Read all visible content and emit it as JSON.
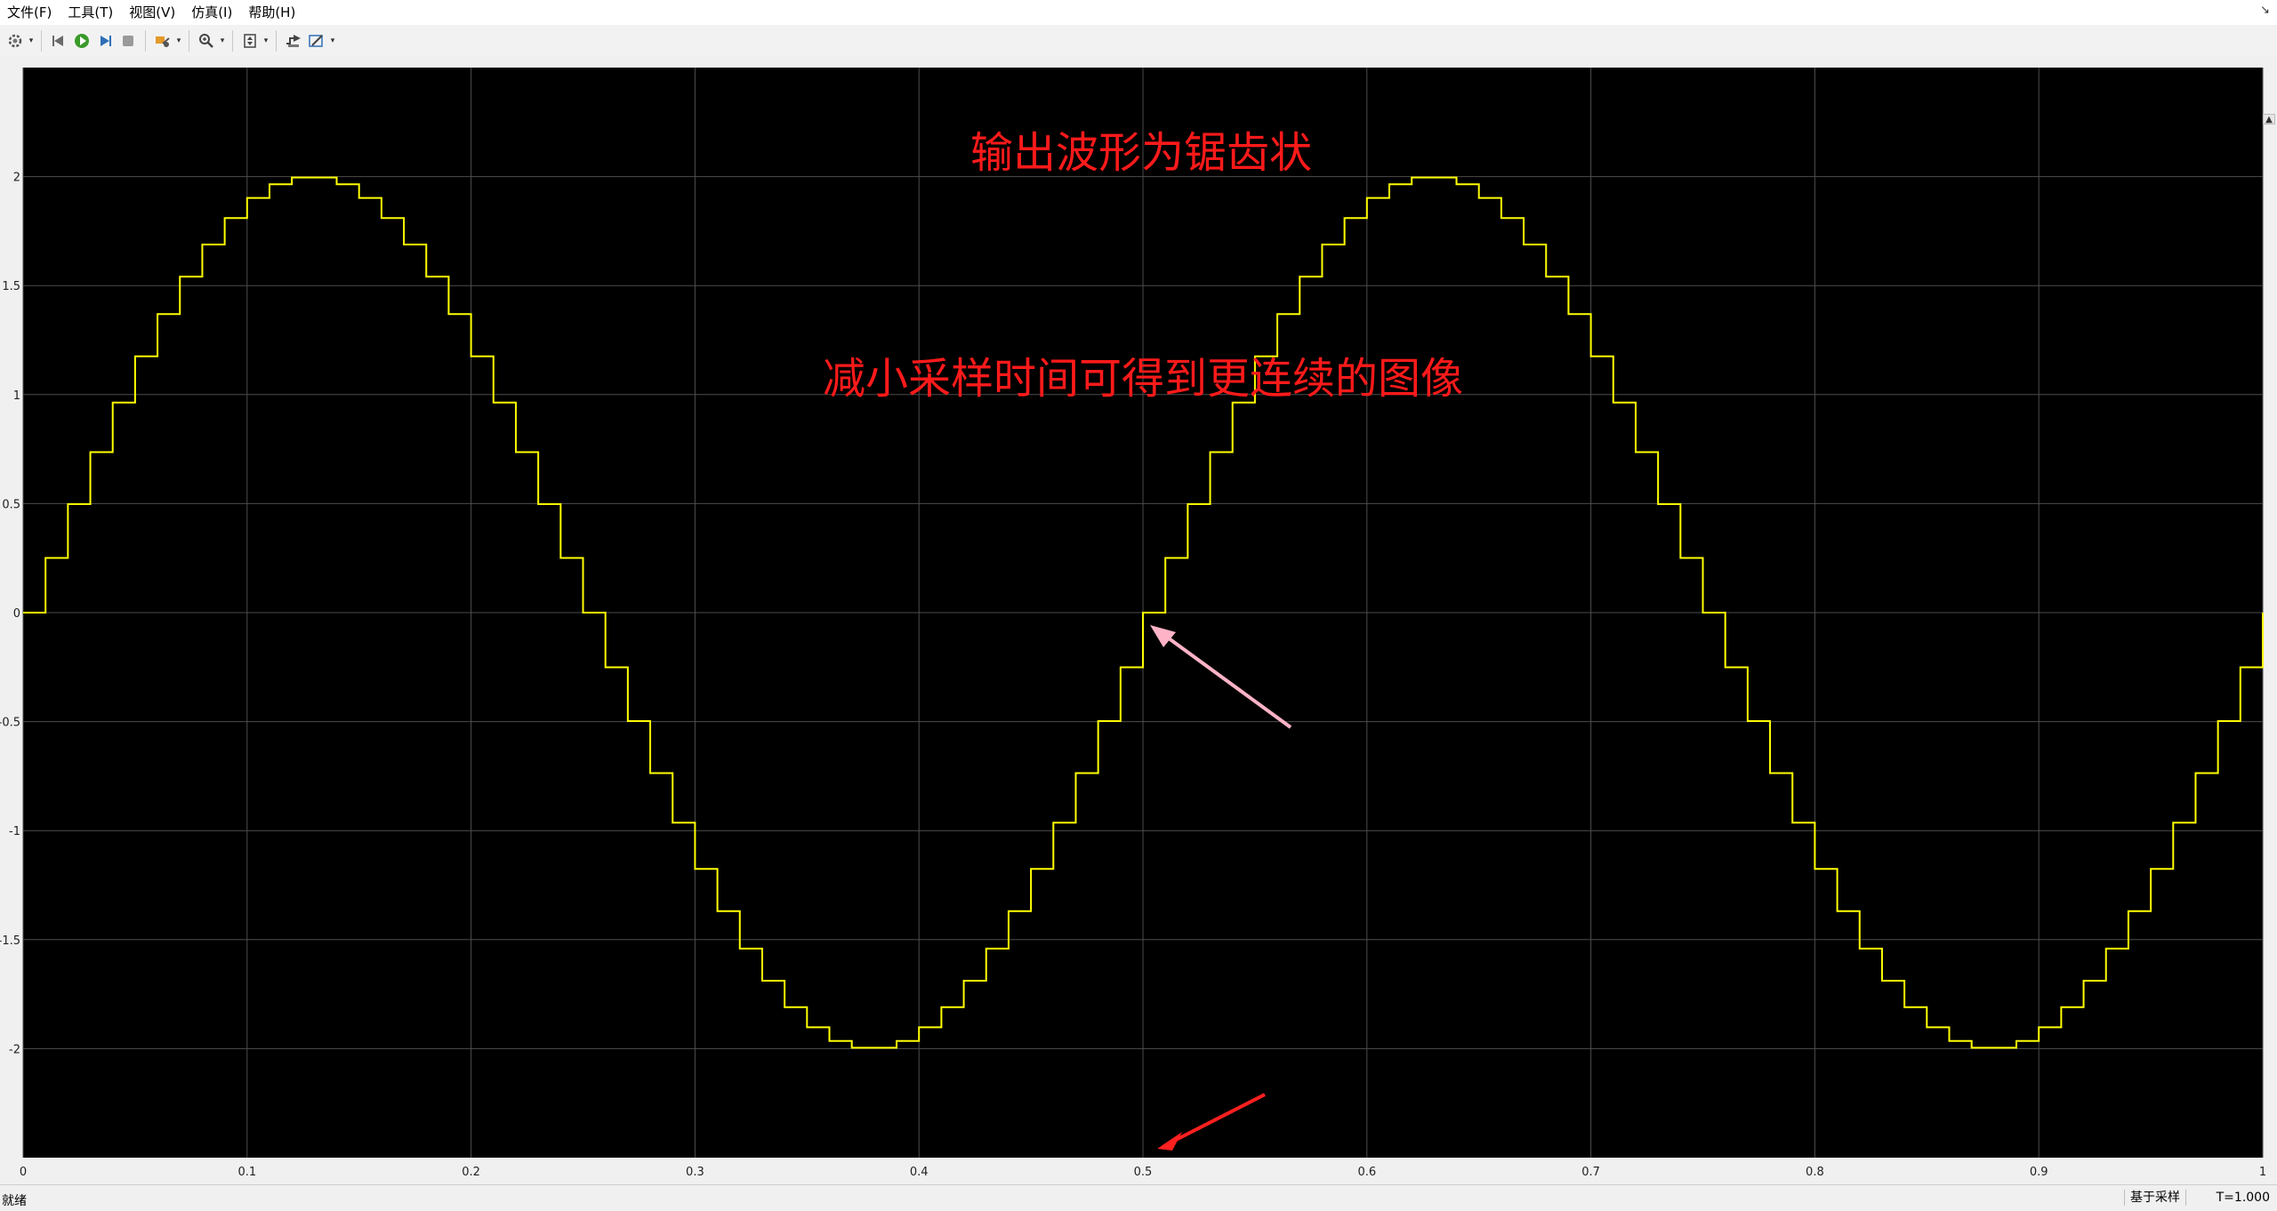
{
  "menu": {
    "file": "文件(F)",
    "tools": "工具(T)",
    "view": "视图(V)",
    "simulation": "仿真(I)",
    "help": "帮助(H)"
  },
  "toolbar": {
    "icons": [
      "gear-icon",
      "step-back-icon",
      "run-icon",
      "step-forward-icon",
      "stop-icon",
      "highlight-icon",
      "zoom-icon",
      "fit-to-view-icon",
      "signal-select-icon",
      "edit-style-icon"
    ]
  },
  "status": {
    "ready": "就绪",
    "mode": "基于采样",
    "time": "T=1.000"
  },
  "annotations": {
    "line1": "输出波形为锯齿状",
    "line2": "减小采样时间可得到更连续的图像"
  },
  "colors": {
    "plot_background": "#000000",
    "grid": "#4d4d4d",
    "signal": "#ffff00",
    "annotation_text": "#ff1a1a",
    "arrow_pink": "#ffb3c6",
    "arrow_red": "#ff2020"
  },
  "chart_data": {
    "type": "line",
    "title": "",
    "xlabel": "",
    "ylabel": "",
    "xlim": [
      0,
      1
    ],
    "ylim": [
      -2.5,
      2.5
    ],
    "x_ticks": [
      0,
      0.1,
      0.2,
      0.3,
      0.4,
      0.5,
      0.6,
      0.7,
      0.8,
      0.9,
      1
    ],
    "x_tick_labels": [
      "0",
      "0.1",
      "0.2",
      "0.3",
      "0.4",
      "0.5",
      "0.6",
      "0.7",
      "0.8",
      "0.9",
      "1"
    ],
    "y_ticks": [
      -2,
      -1.5,
      -1,
      -0.5,
      0,
      0.5,
      1,
      1.5,
      2
    ],
    "y_tick_labels": [
      "-2",
      "-1.5",
      "-1",
      "-0.5",
      "0",
      "0.5",
      "1",
      "1.5",
      "2"
    ],
    "grid": true,
    "series": [
      {
        "style": "step",
        "amplitude": 2,
        "period": 0.5,
        "sample_time": 0.01,
        "x_end": 1
      }
    ]
  }
}
